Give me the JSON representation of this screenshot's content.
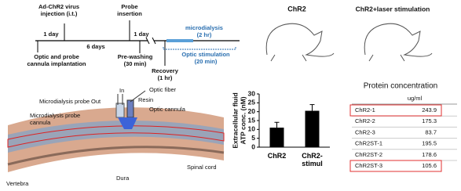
{
  "timeline": {
    "injection": [
      "Ad-ChR2 virus",
      "injection (i.t.)"
    ],
    "probe": [
      "Probe",
      "insertion"
    ],
    "day_a": "1 day",
    "day_b": "1 day",
    "days6": "6 days",
    "implantation": [
      "Optic and probe",
      "cannula implantation"
    ],
    "prewash": [
      "Pre-washing",
      "(30 min)"
    ],
    "recovery": [
      "Recovery",
      "(1 hr)"
    ],
    "microdialysis": [
      "microdialysis",
      "(2 hr)"
    ],
    "stimulation": [
      "Optic stimulation",
      "(20 min)"
    ]
  },
  "illustration": {
    "out": "Out",
    "in": "In",
    "probe": "Microdialysis probe",
    "resin": "Resin",
    "fiber": "Optic fiber",
    "probe_cannula": [
      "Microdialysis probe",
      "cannula"
    ],
    "optic_cannula": "Optic cannula",
    "cord": "Spinal cord",
    "dura": "Dura",
    "vertebra": "Vertebra"
  },
  "rats": {
    "left": "ChR2",
    "right": "ChR2+laser stimulation"
  },
  "chart_data": {
    "type": "bar",
    "y_label": [
      "Extracellular fluid",
      "ATP conc. (nM)"
    ],
    "categories": [
      "ChR2",
      "ChR2-stimul"
    ],
    "values": [
      11,
      20.5
    ],
    "errors": [
      3,
      3.5
    ],
    "color": "#000000",
    "ylim": [
      0,
      30
    ],
    "yticks": [
      0,
      5,
      10,
      15,
      20,
      25,
      30
    ]
  },
  "table": {
    "title": "Protein concentration",
    "unit": "ug/ml",
    "rows": [
      [
        "ChR2-1",
        "243.9"
      ],
      [
        "ChR2-2",
        "175.3"
      ],
      [
        "ChR2-3",
        "83.7"
      ],
      [
        "ChR2ST-1",
        "195.5"
      ],
      [
        "ChR2ST-2",
        "178.6"
      ],
      [
        "ChR2ST-3",
        "105.6"
      ]
    ],
    "highlighted": [
      0,
      5
    ]
  }
}
